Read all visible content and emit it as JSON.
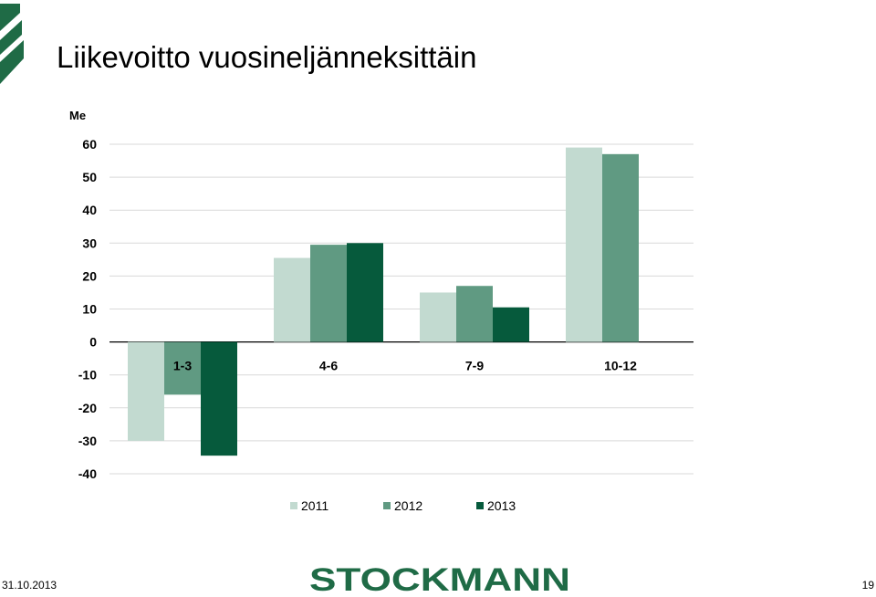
{
  "slide": {
    "title": "Liikevoitto vuosineljänneksittäin",
    "date": "31.10.2013",
    "page_number": "19",
    "brand": "STOCKMANN",
    "brand_color": "#1f6b46"
  },
  "chart_data": {
    "type": "bar",
    "ylabel": "Me",
    "categories": [
      "1-3",
      "4-6",
      "7-9",
      "10-12"
    ],
    "ylim": [
      -40,
      60
    ],
    "yticks": [
      60,
      50,
      40,
      30,
      20,
      10,
      0,
      -10,
      -20,
      -30,
      -40
    ],
    "grid": true,
    "legend_position": "bottom",
    "series": [
      {
        "name": "2011",
        "color": "#c2dad0",
        "values": [
          -30,
          25.5,
          15,
          59
        ]
      },
      {
        "name": "2012",
        "color": "#609a82",
        "values": [
          -16,
          29.5,
          17,
          57
        ]
      },
      {
        "name": "2013",
        "color": "#065a3c",
        "values": [
          -34.5,
          30,
          10.5,
          null
        ]
      }
    ]
  }
}
